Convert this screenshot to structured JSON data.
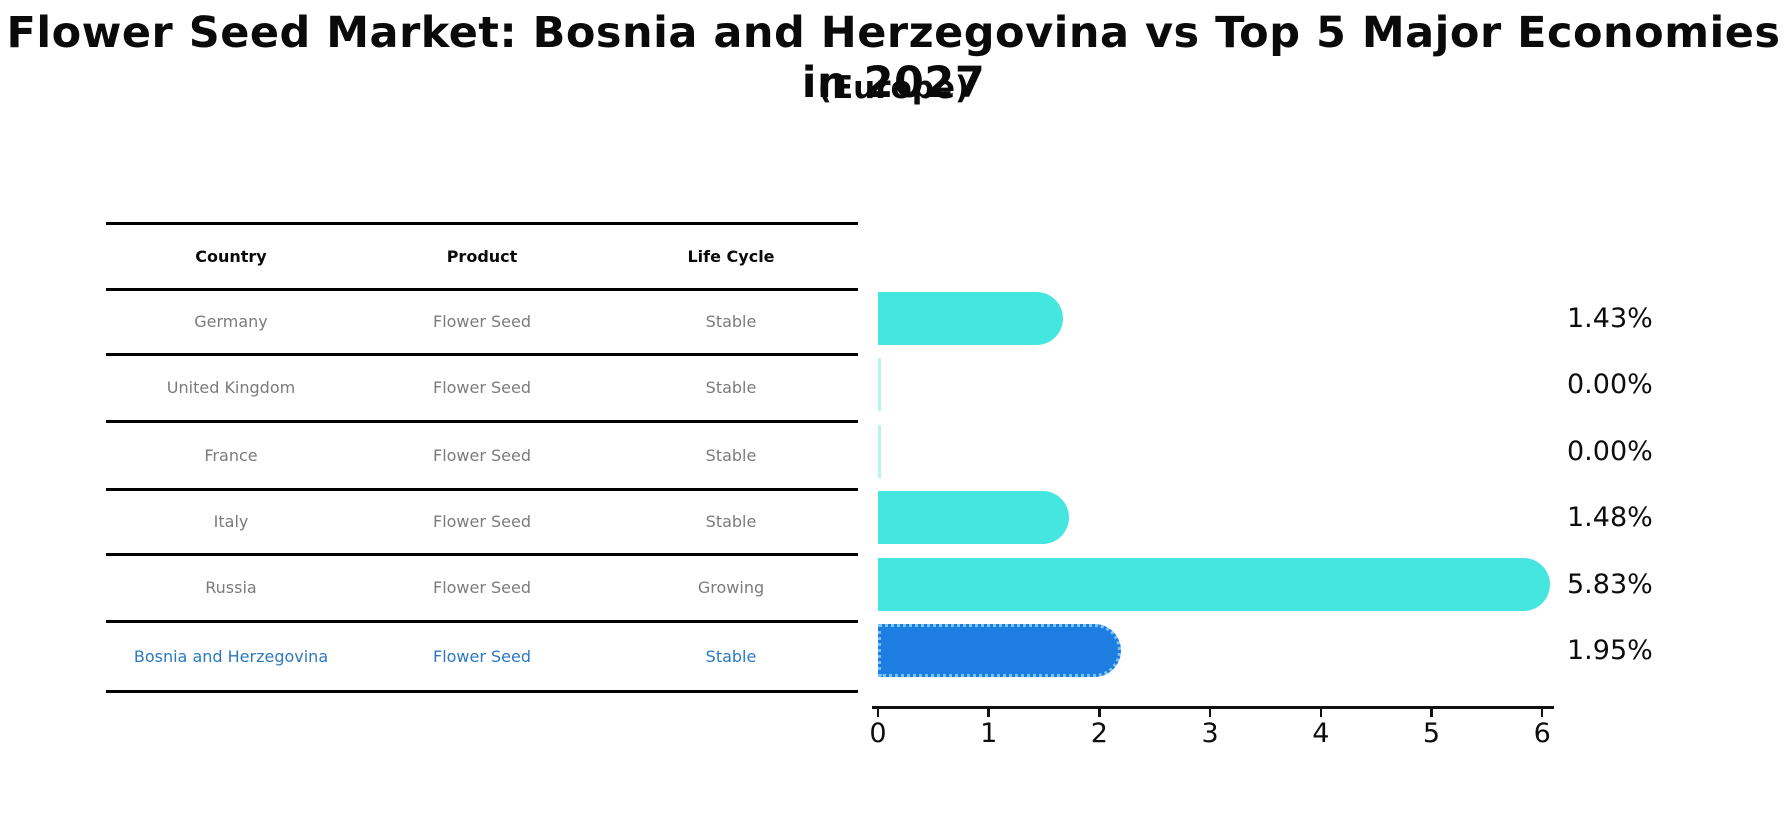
{
  "title": "Flower Seed Market: Bosnia and Herzegovina vs Top 5 Major Economies in 2027",
  "subtitle": "(Europe)",
  "table": {
    "headers": [
      "Country",
      "Product",
      "Life Cycle"
    ],
    "rows": [
      {
        "country": "Germany",
        "product": "Flower Seed",
        "life_cycle": "Stable",
        "highlight": false
      },
      {
        "country": "United Kingdom",
        "product": "Flower Seed",
        "life_cycle": "Stable",
        "highlight": false
      },
      {
        "country": "France",
        "product": "Flower Seed",
        "life_cycle": "Stable",
        "highlight": false
      },
      {
        "country": "Italy",
        "product": "Flower Seed",
        "life_cycle": "Stable",
        "highlight": false
      },
      {
        "country": "Russia",
        "product": "Flower Seed",
        "life_cycle": "Growing",
        "highlight": false
      },
      {
        "country": "Bosnia and Herzegovina",
        "product": "Flower Seed",
        "life_cycle": "Stable",
        "highlight": true
      }
    ]
  },
  "chart_data": {
    "type": "bar",
    "orientation": "horizontal",
    "title": "Flower Seed Market: Bosnia and Herzegovina vs Top 5 Major Economies in 2027 (Europe)",
    "categories": [
      "Germany",
      "United Kingdom",
      "France",
      "Italy",
      "Russia",
      "Bosnia and Herzegovina"
    ],
    "values": [
      1.43,
      0.0,
      0.0,
      1.48,
      5.83,
      1.95
    ],
    "value_labels": [
      "1.43%",
      "0.00%",
      "0.00%",
      "1.48%",
      "5.83%",
      "1.95%"
    ],
    "xlim": [
      0,
      6
    ],
    "x_ticks": [
      "0",
      "1",
      "2",
      "3",
      "4",
      "5",
      "6"
    ],
    "grid": false,
    "legend": false,
    "highlight_index": 5
  },
  "colors": {
    "bar_cyan": "#45e6e0",
    "bar_blue": "#1e7de0",
    "zero_bar": "#b9f2ee",
    "highlight_text": "#2b79c2",
    "table_text": "#7b7b7b",
    "axis": "#111111"
  }
}
